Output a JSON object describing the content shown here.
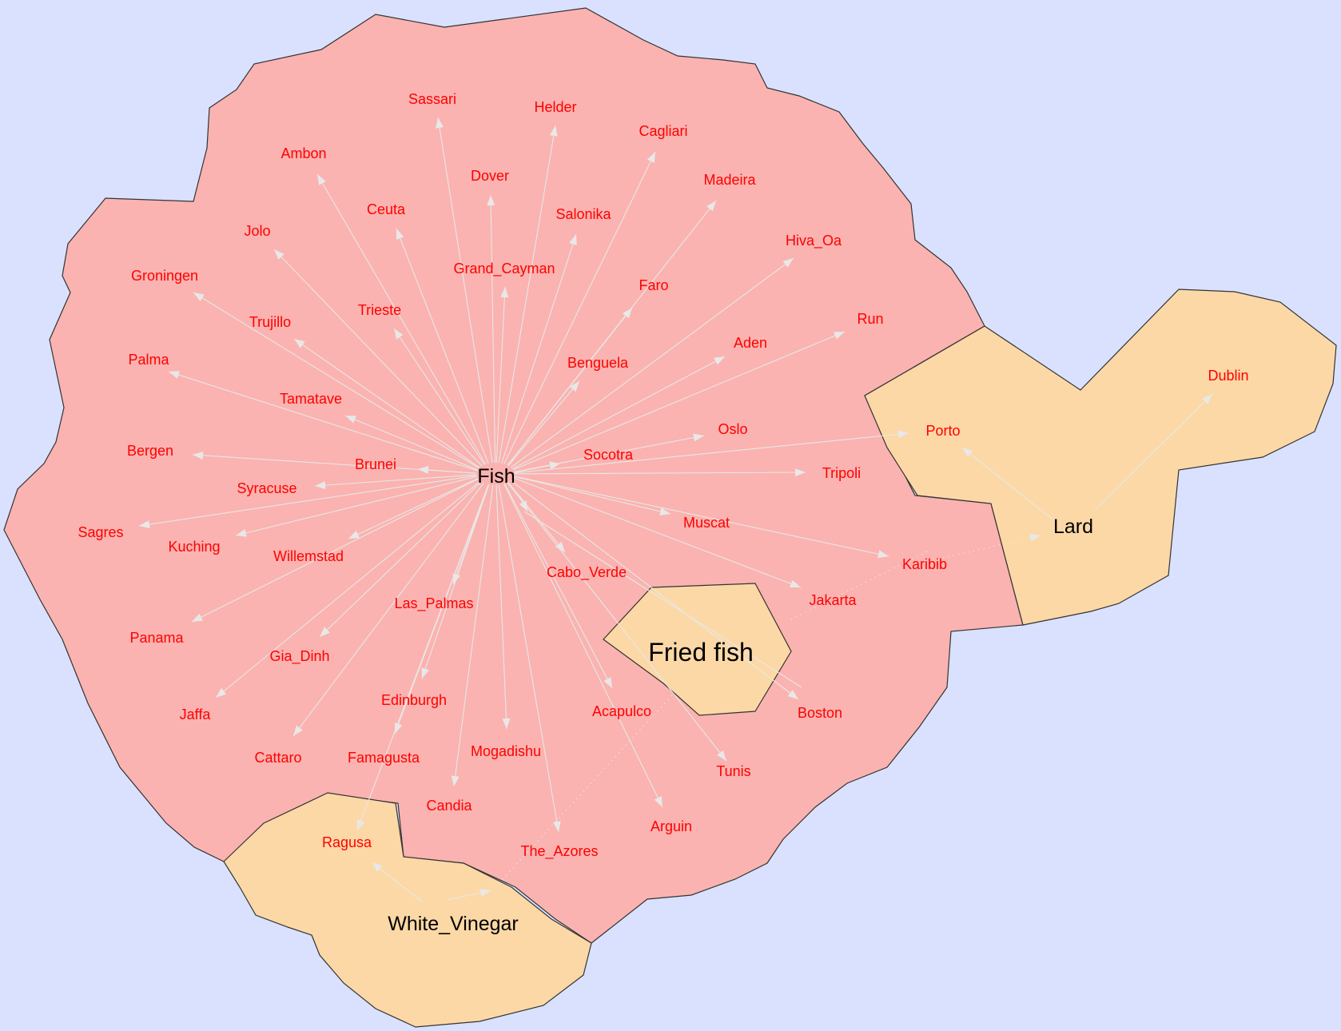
{
  "colors": {
    "background": "#d9e1fe",
    "fish_region": "#fab3b0",
    "other_region": "#fcd8a6",
    "city_text": "#ff0000",
    "hub_text": "#000000",
    "fried_fish_text": "#0000ff",
    "edge": "#e8e8e8"
  },
  "hubs": {
    "fish": "Fish",
    "lard": "Lard",
    "white_vinegar": "White_Vinegar",
    "fried_fish": "Fried fish"
  },
  "cities": [
    "Sassari",
    "Helder",
    "Cagliari",
    "Ambon",
    "Dover",
    "Madeira",
    "Ceuta",
    "Salonika",
    "Jolo",
    "Hiva_Oa",
    "Grand_Cayman",
    "Groningen",
    "Faro",
    "Trieste",
    "Run",
    "Trujillo",
    "Aden",
    "Palma",
    "Benguela",
    "Tamatave",
    "Oslo",
    "Porto",
    "Dublin",
    "Bergen",
    "Socotra",
    "Brunei",
    "Tripoli",
    "Syracuse",
    "Muscat",
    "Sagres",
    "Kuching",
    "Willemstad",
    "Karibib",
    "Cabo_Verde",
    "Jakarta",
    "Las_Palmas",
    "Panama",
    "Gia_Dinh",
    "Boston",
    "Acapulco",
    "Edinburgh",
    "Jaffa",
    "Tunis",
    "Mogadishu",
    "Cattaro",
    "Famagusta",
    "Candia",
    "Arguin",
    "Ragusa",
    "The_Azores"
  ]
}
